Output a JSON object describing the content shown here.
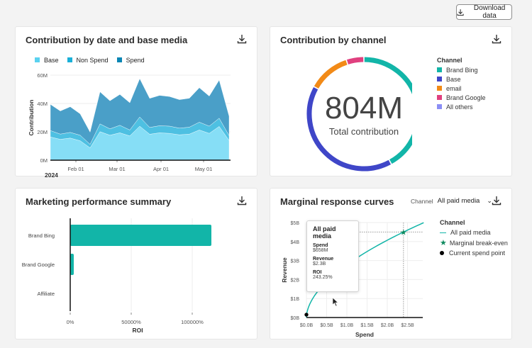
{
  "download_button": {
    "label": "Download data"
  },
  "colors": {
    "teal": "#12b5a8",
    "base": "#3f46c8",
    "email": "#f28a17",
    "brand_google": "#e0407f",
    "all_others": "#8b8ef5"
  },
  "cards": {
    "contribution_by_date": {
      "title": "Contribution by date and base media"
    },
    "contribution_by_channel": {
      "title": "Contribution by channel",
      "total": "804M",
      "total_label": "Total contribution"
    },
    "marketing_summary": {
      "title": "Marketing performance summary"
    },
    "marginal": {
      "title": "Marginal response curves",
      "channel_label": "Channel",
      "channel_value": "All paid media",
      "tooltip": {
        "title": "All paid media",
        "spend_label": "Spend",
        "spend": "$658M",
        "revenue_label": "Revenue",
        "revenue": "$2.3B",
        "roi_label": "ROI",
        "roi": "243.25%"
      }
    }
  },
  "chart_data": [
    {
      "type": "area",
      "stacked": true,
      "ylabel": "Contribution",
      "year_label": "2024",
      "x": [
        "2024-01-14",
        "2024-01-21",
        "2024-01-28",
        "2024-02-04",
        "2024-02-11",
        "2024-02-18",
        "2024-02-25",
        "2024-03-03",
        "2024-03-10",
        "2024-03-17",
        "2024-03-24",
        "2024-03-31",
        "2024-04-07",
        "2024-04-14",
        "2024-04-21",
        "2024-04-28",
        "2024-05-05",
        "2024-05-12",
        "2024-05-19"
      ],
      "xticks": [
        "Feb 01",
        "Mar 01",
        "Apr 01",
        "May 01"
      ],
      "yticks": [
        "0M",
        "20M",
        "40M",
        "60M"
      ],
      "ylim": [
        0,
        60
      ],
      "grid": true,
      "legend": "top-left",
      "series": [
        {
          "name": "Base",
          "color": "#5ad2f0",
          "values": [
            16.4,
            14.7,
            15.6,
            13.7,
            8.7,
            20.1,
            17.6,
            19.3,
            17.1,
            24.0,
            18.3,
            19.3,
            18.9,
            17.9,
            18.4,
            21.3,
            18.9,
            23.8,
            13.9
          ]
        },
        {
          "name": "Non Spend",
          "color": "#1ab0d8",
          "values": [
            4.5,
            3.7,
            4.0,
            3.9,
            2.5,
            5.5,
            4.5,
            5.3,
            4.2,
            6.5,
            4.8,
            5.0,
            5.1,
            4.7,
            4.9,
            5.5,
            5.1,
            5.8,
            3.4
          ]
        },
        {
          "name": "Spend",
          "color": "#0a86b4",
          "values": [
            18.5,
            16.3,
            18.1,
            15.1,
            8.6,
            22.6,
            19.8,
            21.8,
            19.2,
            27.0,
            20.5,
            21.4,
            20.9,
            20.1,
            20.4,
            24.3,
            21.2,
            26.9,
            13.7
          ]
        }
      ]
    },
    {
      "type": "pie",
      "donut": true,
      "legend_title": "Channel",
      "legend": "right",
      "categories": [
        "Brand Bing",
        "Base",
        "email",
        "Brand Google",
        "All others"
      ],
      "values_percent": [
        42,
        41,
        12,
        5,
        0
      ],
      "colors": [
        "#12b5a8",
        "#3f46c8",
        "#f28a17",
        "#e0407f",
        "#8b8ef5"
      ]
    },
    {
      "type": "bar",
      "orientation": "horizontal",
      "xlabel": "ROI",
      "categories": [
        "Brand Bing",
        "Brand Google",
        "Affiliate"
      ],
      "values": [
        115700,
        2900,
        0
      ],
      "xticks": [
        "0%",
        "50000%",
        "100000%"
      ],
      "xlim": [
        0,
        130000
      ],
      "color": "#12b5a8"
    },
    {
      "type": "line",
      "xlabel": "Spend",
      "ylabel": "Revenue",
      "legend_title": "Channel",
      "legend": "right",
      "xticks": [
        "$0.0B",
        "$0.5B",
        "$1.0B",
        "$1.5B",
        "$2.0B",
        "$2.5B"
      ],
      "yticks": [
        "$0B",
        "$1B",
        "$2B",
        "$3B",
        "$4B",
        "$5B"
      ],
      "xlim": [
        0,
        2.9
      ],
      "ylim": [
        0,
        5
      ],
      "series": [
        {
          "name": "All paid media",
          "color": "#12b5a8",
          "x": [
            0,
            0.1,
            0.25,
            0.5,
            0.75,
            1,
            1.5,
            2,
            2.4,
            2.9
          ],
          "y": [
            0,
            0.78,
            1.3,
            1.9,
            2.37,
            2.78,
            3.48,
            4.07,
            4.5,
            4.99
          ]
        }
      ],
      "markers": [
        {
          "name": "Marginal break-even",
          "x": 2.4,
          "y": 4.5,
          "color": "#0f8a5f"
        },
        {
          "name": "Current spend point",
          "x": 0,
          "y": 0.15,
          "color": "#000000"
        }
      ]
    }
  ]
}
